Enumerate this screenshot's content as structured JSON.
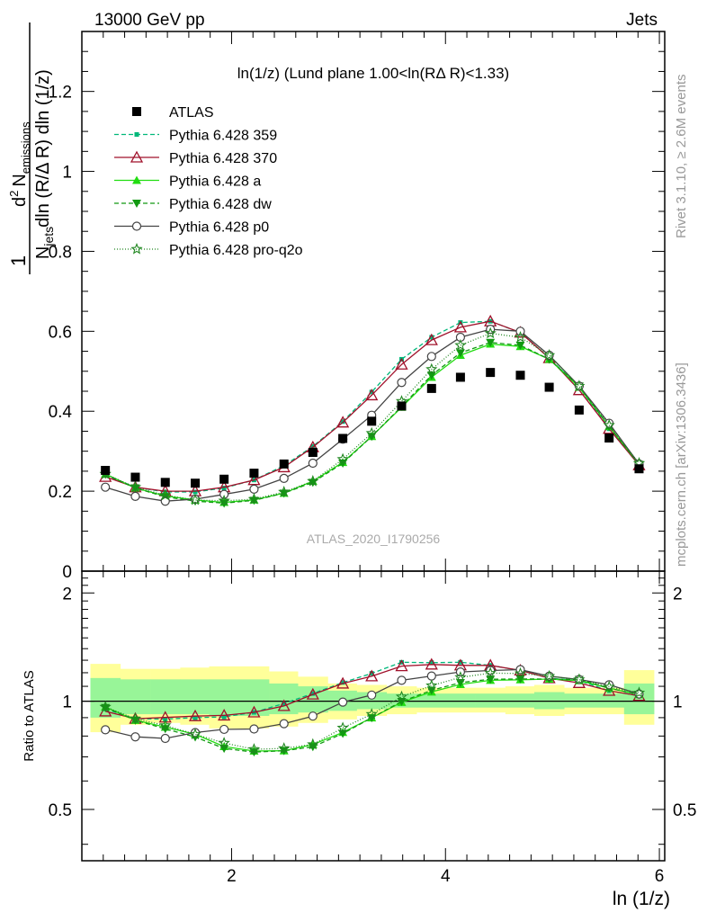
{
  "header": {
    "left": "13000 GeV pp",
    "right": "Jets"
  },
  "side_labels": {
    "rivet": "Rivet 3.1.10, ≥ 2.6M events",
    "mcplots": "mcplots.cern.ch [arXiv:1306.3436]"
  },
  "watermark": "ATLAS_2020_I1790256",
  "main_title": "ln(1/z) (Lund plane 1.00<ln(RΔ R)<1.33)",
  "chart_data": [
    {
      "type": "line",
      "panel": "main",
      "ylabel_parts": {
        "one": "1",
        "n_jets": "N",
        "jets_sub": "jets",
        "dln": "dln (R/Δ R) dln (1/z)",
        "d2": "d",
        "sq": "2",
        "n_em": "N",
        "em_sub": "emissions"
      },
      "xlim": [
        0.6,
        6.05
      ],
      "ylim": [
        0,
        1.35
      ],
      "yticks": [
        0,
        0.2,
        0.4,
        0.6,
        0.8,
        1,
        1.2
      ],
      "ytick_labels": [
        "0",
        "0.2",
        "0.4",
        "0.6",
        "0.8",
        "1",
        "1.2"
      ],
      "x": [
        0.82,
        1.1,
        1.38,
        1.66,
        1.93,
        2.21,
        2.49,
        2.76,
        3.04,
        3.31,
        3.59,
        3.87,
        4.14,
        4.42,
        4.7,
        4.97,
        5.25,
        5.53,
        5.81
      ],
      "data": {
        "name": "ATLAS",
        "values": [
          0.252,
          0.235,
          0.222,
          0.22,
          0.23,
          0.245,
          0.268,
          0.297,
          0.332,
          0.375,
          0.413,
          0.457,
          0.485,
          0.497,
          0.49,
          0.46,
          0.403,
          0.333,
          0.256
        ]
      },
      "series": [
        {
          "name": "Pythia 6.428 359",
          "color": "#00b87a",
          "marker": "square-small",
          "dash": "5,3",
          "values": [
            0.24,
            0.21,
            0.198,
            0.198,
            0.208,
            0.228,
            0.264,
            0.312,
            0.374,
            0.448,
            0.53,
            0.585,
            0.622,
            0.625,
            0.597,
            0.533,
            0.46,
            0.356,
            0.265
          ]
        },
        {
          "name": "Pythia 6.428 370",
          "color": "#a0102a",
          "marker": "triangle-open",
          "dash": "",
          "values": [
            0.236,
            0.21,
            0.2,
            0.2,
            0.21,
            0.228,
            0.26,
            0.31,
            0.372,
            0.44,
            0.517,
            0.578,
            0.61,
            0.625,
            0.597,
            0.533,
            0.453,
            0.356,
            0.265
          ]
        },
        {
          "name": "Pythia 6.428 a",
          "color": "#22dd11",
          "marker": "triangle-filled",
          "dash": "",
          "values": [
            0.243,
            0.208,
            0.188,
            0.178,
            0.172,
            0.178,
            0.195,
            0.225,
            0.272,
            0.337,
            0.41,
            0.485,
            0.54,
            0.568,
            0.562,
            0.53,
            0.46,
            0.362,
            0.267
          ]
        },
        {
          "name": "Pythia 6.428 dw",
          "color": "#119911",
          "marker": "triangle-down-filled",
          "dash": "5,3",
          "values": [
            0.242,
            0.208,
            0.186,
            0.175,
            0.17,
            0.177,
            0.195,
            0.222,
            0.27,
            0.337,
            0.412,
            0.49,
            0.546,
            0.572,
            0.565,
            0.53,
            0.463,
            0.362,
            0.267
          ]
        },
        {
          "name": "Pythia 6.428 p0",
          "color": "#444444",
          "marker": "circle-open",
          "dash": "",
          "values": [
            0.21,
            0.187,
            0.175,
            0.18,
            0.192,
            0.205,
            0.232,
            0.27,
            0.33,
            0.39,
            0.472,
            0.537,
            0.585,
            0.605,
            0.6,
            0.54,
            0.463,
            0.37,
            0.268
          ]
        },
        {
          "name": "Pythia 6.428 pro-q2o",
          "color": "#228822",
          "marker": "star-open",
          "dash": "1,2",
          "values": [
            0.243,
            0.21,
            0.19,
            0.178,
            0.176,
            0.18,
            0.198,
            0.225,
            0.28,
            0.345,
            0.425,
            0.505,
            0.565,
            0.595,
            0.585,
            0.54,
            0.463,
            0.365,
            0.27
          ]
        }
      ]
    },
    {
      "type": "line",
      "panel": "ratio",
      "ylabel": "Ratio to ATLAS",
      "xlabel": "ln (1/z)",
      "xlim": [
        0.6,
        6.05
      ],
      "ylim": [
        0.36,
        2.3
      ],
      "yticks": [
        0.5,
        1,
        2
      ],
      "ytick_labels": [
        "0.5",
        "1",
        "2"
      ],
      "xticks": [
        2,
        4,
        6
      ],
      "xtick_labels": [
        "2",
        "4",
        "6"
      ],
      "x": [
        0.82,
        1.1,
        1.38,
        1.66,
        1.93,
        2.21,
        2.49,
        2.76,
        3.04,
        3.31,
        3.59,
        3.87,
        4.14,
        4.42,
        4.7,
        4.97,
        5.25,
        5.53,
        5.81
      ],
      "bin_edges": [
        0.68,
        0.96,
        1.24,
        1.52,
        1.79,
        2.07,
        2.35,
        2.62,
        2.9,
        3.17,
        3.45,
        3.73,
        4.0,
        4.28,
        4.56,
        4.83,
        5.11,
        5.39,
        5.67,
        5.95
      ],
      "band_yellow": [
        [
          0.82,
          1.27
        ],
        [
          0.86,
          1.23
        ],
        [
          0.87,
          1.23
        ],
        [
          0.86,
          1.24
        ],
        [
          0.84,
          1.25
        ],
        [
          0.84,
          1.25
        ],
        [
          0.85,
          1.21
        ],
        [
          0.87,
          1.17
        ],
        [
          0.89,
          1.12
        ],
        [
          0.91,
          1.11
        ],
        [
          0.92,
          1.1
        ],
        [
          0.93,
          1.09
        ],
        [
          0.93,
          1.09
        ],
        [
          0.93,
          1.09
        ],
        [
          0.92,
          1.1
        ],
        [
          0.91,
          1.11
        ],
        [
          0.92,
          1.09
        ],
        [
          0.92,
          1.09
        ],
        [
          0.86,
          1.22
        ]
      ],
      "band_green": [
        [
          0.9,
          1.16
        ],
        [
          0.92,
          1.15
        ],
        [
          0.92,
          1.15
        ],
        [
          0.92,
          1.15
        ],
        [
          0.91,
          1.15
        ],
        [
          0.91,
          1.15
        ],
        [
          0.92,
          1.12
        ],
        [
          0.93,
          1.1
        ],
        [
          0.94,
          1.07
        ],
        [
          0.95,
          1.06
        ],
        [
          0.96,
          1.05
        ],
        [
          0.96,
          1.05
        ],
        [
          0.96,
          1.05
        ],
        [
          0.96,
          1.05
        ],
        [
          0.96,
          1.05
        ],
        [
          0.95,
          1.06
        ],
        [
          0.96,
          1.05
        ],
        [
          0.96,
          1.05
        ],
        [
          0.92,
          1.12
        ]
      ],
      "series": [
        {
          "name": "Pythia 6.428 359",
          "values": [
            0.952,
            0.894,
            0.892,
            0.9,
            0.904,
            0.931,
            0.985,
            1.05,
            1.127,
            1.195,
            1.283,
            1.28,
            1.283,
            1.258,
            1.218,
            1.159,
            1.141,
            1.069,
            1.035
          ]
        },
        {
          "name": "Pythia 6.428 370",
          "values": [
            0.937,
            0.894,
            0.901,
            0.909,
            0.913,
            0.931,
            0.97,
            1.044,
            1.12,
            1.173,
            1.252,
            1.265,
            1.258,
            1.258,
            1.218,
            1.159,
            1.124,
            1.069,
            1.035
          ]
        },
        {
          "name": "Pythia 6.428 a",
          "values": [
            0.964,
            0.885,
            0.847,
            0.809,
            0.748,
            0.727,
            0.728,
            0.758,
            0.819,
            0.899,
            0.993,
            1.061,
            1.113,
            1.143,
            1.147,
            1.152,
            1.141,
            1.087,
            1.043
          ]
        },
        {
          "name": "Pythia 6.428 dw",
          "values": [
            0.96,
            0.885,
            0.838,
            0.795,
            0.739,
            0.722,
            0.728,
            0.747,
            0.813,
            0.899,
            0.998,
            1.072,
            1.126,
            1.151,
            1.153,
            1.152,
            1.149,
            1.087,
            1.043
          ]
        },
        {
          "name": "Pythia 6.428 p0",
          "values": [
            0.833,
            0.796,
            0.788,
            0.818,
            0.835,
            0.837,
            0.866,
            0.909,
            0.994,
            1.04,
            1.143,
            1.175,
            1.206,
            1.217,
            1.224,
            1.174,
            1.149,
            1.111,
            1.047
          ]
        },
        {
          "name": "Pythia 6.428 pro-q2o",
          "values": [
            0.964,
            0.894,
            0.856,
            0.809,
            0.765,
            0.735,
            0.739,
            0.758,
            0.843,
            0.92,
            1.029,
            1.105,
            1.165,
            1.197,
            1.194,
            1.174,
            1.149,
            1.096,
            1.055
          ]
        }
      ]
    }
  ]
}
